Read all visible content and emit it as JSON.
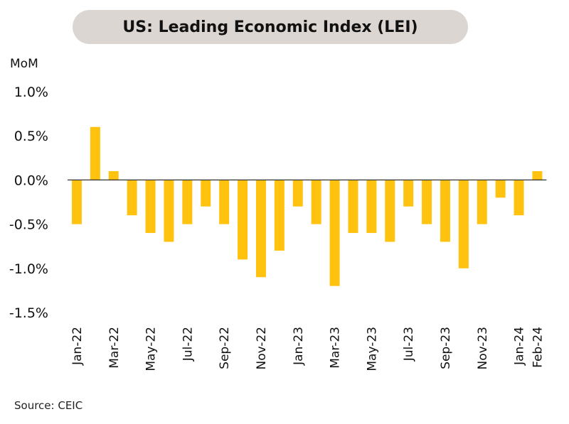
{
  "title": "US: Leading Economic Index (LEI)",
  "unit_label": "MoM",
  "source": "Source: CEIC",
  "colors": {
    "bar": "#FFC20E",
    "zero_line": "#333333",
    "title_bg": "#dcd6d2"
  },
  "chart_data": {
    "type": "bar",
    "title": "US: Leading Economic Index (LEI)",
    "ylabel": "MoM",
    "ylim": [
      -1.5,
      1.0
    ],
    "yticks": [
      "1.0%",
      "0.5%",
      "0.0%",
      "-0.5%",
      "-1.0%",
      "-1.5%"
    ],
    "ytick_values": [
      1.0,
      0.5,
      0.0,
      -0.5,
      -1.0,
      -1.5
    ],
    "categories": [
      "Jan-22",
      "Feb-22",
      "Mar-22",
      "Apr-22",
      "May-22",
      "Jun-22",
      "Jul-22",
      "Aug-22",
      "Sep-22",
      "Oct-22",
      "Nov-22",
      "Dec-22",
      "Jan-23",
      "Feb-23",
      "Mar-23",
      "Apr-23",
      "May-23",
      "Jun-23",
      "Jul-23",
      "Aug-23",
      "Sep-23",
      "Oct-23",
      "Nov-23",
      "Dec-23",
      "Jan-24",
      "Feb-24"
    ],
    "values": [
      -0.5,
      0.6,
      0.1,
      -0.4,
      -0.6,
      -0.7,
      -0.5,
      -0.3,
      -0.5,
      -0.9,
      -1.1,
      -0.8,
      -0.3,
      -0.5,
      -1.2,
      -0.6,
      -0.6,
      -0.7,
      -0.3,
      -0.5,
      -0.7,
      -1.0,
      -0.5,
      -0.2,
      -0.4,
      0.1
    ],
    "xtick_labels": [
      "Jan-22",
      "Mar-22",
      "May-22",
      "Jul-22",
      "Sep-22",
      "Nov-22",
      "Jan-23",
      "Mar-23",
      "May-23",
      "Jul-23",
      "Sep-23",
      "Nov-23",
      "Jan-24",
      "Feb-24"
    ],
    "grid": false,
    "legend": "none"
  }
}
